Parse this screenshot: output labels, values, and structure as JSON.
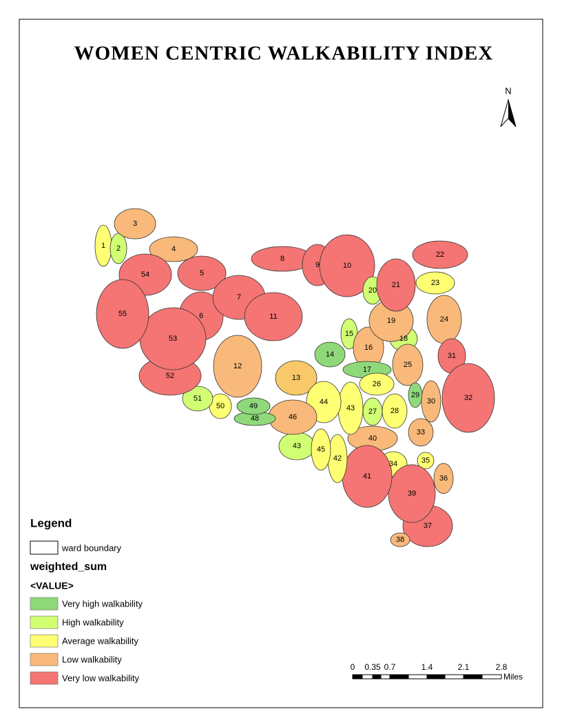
{
  "title": "WOMEN CENTRIC WALKABILITY INDEX",
  "north": "N",
  "legend": {
    "title": "Legend",
    "boundary_label": "ward boundary",
    "field": "weighted_sum",
    "value_header": "<VALUE>",
    "items": [
      {
        "label": "Very high walkability",
        "color": "#8fd97a"
      },
      {
        "label": "High walkability",
        "color": "#d1ff73"
      },
      {
        "label": "Average walkability",
        "color": "#ffff73"
      },
      {
        "label": "Low walkability",
        "color": "#f8b97a"
      },
      {
        "label": "Very low walkability",
        "color": "#f47574"
      }
    ]
  },
  "scale": {
    "ticks": [
      "0",
      "0.35",
      "0.7",
      "1.4",
      "2.1",
      "2.8"
    ],
    "unit": "Miles"
  },
  "wards": [
    {
      "label": "1",
      "color": "#ffff73"
    },
    {
      "label": "2",
      "color": "#d1ff73"
    },
    {
      "label": "3",
      "color": "#f8b97a"
    },
    {
      "label": "4",
      "color": "#f8b97a"
    },
    {
      "label": "5",
      "color": "#f47574"
    },
    {
      "label": "6",
      "color": "#f47574"
    },
    {
      "label": "7",
      "color": "#f47574"
    },
    {
      "label": "8",
      "color": "#f47574"
    },
    {
      "label": "9",
      "color": "#f47574"
    },
    {
      "label": "10",
      "color": "#f47574"
    },
    {
      "label": "11",
      "color": "#f47574"
    },
    {
      "label": "12",
      "color": "#f8b97a"
    },
    {
      "label": "13",
      "color": "#f8c86a"
    },
    {
      "label": "14",
      "color": "#8fd97a"
    },
    {
      "label": "15",
      "color": "#d1ff73"
    },
    {
      "label": "16",
      "color": "#f8b97a"
    },
    {
      "label": "17",
      "color": "#8fd97a"
    },
    {
      "label": "18",
      "color": "#d1ff73"
    },
    {
      "label": "19",
      "color": "#f8b97a"
    },
    {
      "label": "20",
      "color": "#d1ff73"
    },
    {
      "label": "21",
      "color": "#f47574"
    },
    {
      "label": "22",
      "color": "#f47574"
    },
    {
      "label": "23",
      "color": "#ffff73"
    },
    {
      "label": "24",
      "color": "#f8b97a"
    },
    {
      "label": "25",
      "color": "#f8b97a"
    },
    {
      "label": "26",
      "color": "#ffff73"
    },
    {
      "label": "27",
      "color": "#d1ff73"
    },
    {
      "label": "28",
      "color": "#ffff73"
    },
    {
      "label": "29",
      "color": "#8fd97a"
    },
    {
      "label": "30",
      "color": "#f8b97a"
    },
    {
      "label": "31",
      "color": "#f47574"
    },
    {
      "label": "32",
      "color": "#f47574"
    },
    {
      "label": "33",
      "color": "#f8b97a"
    },
    {
      "label": "34",
      "color": "#ffff73"
    },
    {
      "label": "35",
      "color": "#ffff73"
    },
    {
      "label": "36",
      "color": "#f8b97a"
    },
    {
      "label": "37",
      "color": "#f47574"
    },
    {
      "label": "38",
      "color": "#f8b97a"
    },
    {
      "label": "39",
      "color": "#f47574"
    },
    {
      "label": "40",
      "color": "#f8b97a"
    },
    {
      "label": "41",
      "color": "#f47574"
    },
    {
      "label": "42",
      "color": "#ffff73"
    },
    {
      "label": "43",
      "color": "#ffff73"
    },
    {
      "label": "43",
      "color": "#d1ff73"
    },
    {
      "label": "44",
      "color": "#ffff73"
    },
    {
      "label": "45",
      "color": "#ffff73"
    },
    {
      "label": "46",
      "color": "#f8b97a"
    },
    {
      "label": "48",
      "color": "#8fd97a"
    },
    {
      "label": "49",
      "color": "#8fd97a"
    },
    {
      "label": "50",
      "color": "#ffff73"
    },
    {
      "label": "51",
      "color": "#d1ff73"
    },
    {
      "label": "52",
      "color": "#f47574"
    },
    {
      "label": "53",
      "color": "#f47574"
    },
    {
      "label": "54",
      "color": "#f47574"
    },
    {
      "label": "55",
      "color": "#f47574"
    }
  ]
}
